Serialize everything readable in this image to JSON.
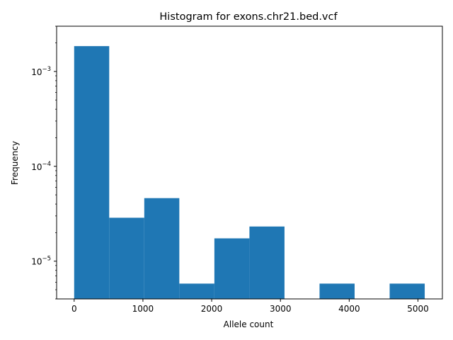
{
  "chart_data": {
    "type": "bar",
    "title": "Histogram for exons.chr21.bed.vcf",
    "xlabel": "Allele count",
    "ylabel": "Frequency",
    "xlim": [
      -255,
      5355
    ],
    "ylim": [
      4e-06,
      0.003
    ],
    "y_scale": "log",
    "bar_color": "#1f77b4",
    "bins": [
      {
        "x0": 0,
        "x1": 509.8,
        "value": 0.00185
      },
      {
        "x0": 509.8,
        "x1": 1019.6,
        "value": 2.87e-05
      },
      {
        "x0": 1019.6,
        "x1": 1529.4,
        "value": 4.62e-05
      },
      {
        "x0": 1529.4,
        "x1": 2039.2,
        "value": 5.8e-06
      },
      {
        "x0": 2039.2,
        "x1": 2549.0,
        "value": 1.74e-05
      },
      {
        "x0": 2549.0,
        "x1": 3058.8,
        "value": 2.32e-05
      },
      {
        "x0": 3058.8,
        "x1": 3568.6,
        "value": 0
      },
      {
        "x0": 3568.6,
        "x1": 4078.4,
        "value": 5.8e-06
      },
      {
        "x0": 4078.4,
        "x1": 4588.2,
        "value": 0
      },
      {
        "x0": 4588.2,
        "x1": 5098.0,
        "value": 5.8e-06
      }
    ],
    "x_ticks": [
      {
        "value": 0,
        "label": "0"
      },
      {
        "value": 1000,
        "label": "1000"
      },
      {
        "value": 2000,
        "label": "2000"
      },
      {
        "value": 3000,
        "label": "3000"
      },
      {
        "value": 4000,
        "label": "4000"
      },
      {
        "value": 5000,
        "label": "5000"
      }
    ],
    "y_major_ticks": [
      {
        "value": 1e-05,
        "base": "10",
        "exp": "−5"
      },
      {
        "value": 0.0001,
        "base": "10",
        "exp": "−4"
      },
      {
        "value": 0.001,
        "base": "10",
        "exp": "−3"
      }
    ],
    "y_minor_ticks": [
      4e-06,
      5e-06,
      6e-06,
      7e-06,
      8e-06,
      9e-06,
      2e-05,
      3e-05,
      4e-05,
      5e-05,
      6e-05,
      7e-05,
      8e-05,
      9e-05,
      0.0002,
      0.0003,
      0.0004,
      0.0005,
      0.0006,
      0.0007,
      0.0008,
      0.0009,
      0.002,
      0.003
    ],
    "grid": false,
    "legend": "none"
  }
}
